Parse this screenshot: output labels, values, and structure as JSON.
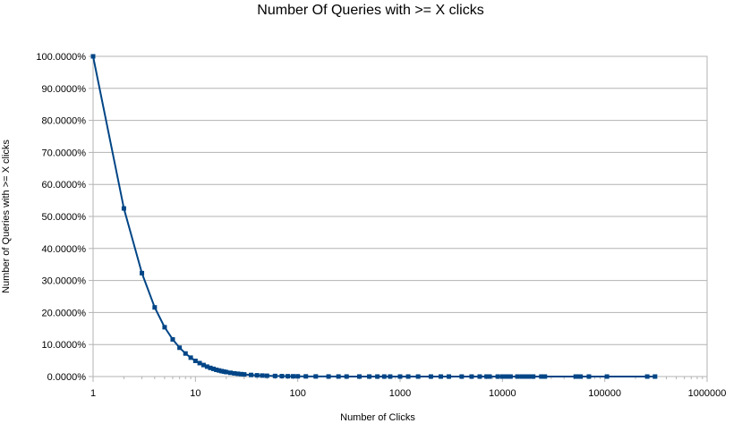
{
  "chart_data": {
    "type": "line",
    "title": "Number Of Queries with >= X clicks",
    "xlabel": "Number of Clicks",
    "ylabel": "Number of Queries with >= X clicks",
    "x_scale": "log",
    "xlim": [
      1,
      1000000
    ],
    "ylim": [
      0,
      100
    ],
    "grid": true,
    "legend": "none",
    "x_ticks": [
      "1",
      "10",
      "100",
      "1000",
      "10000",
      "100000",
      "1000000"
    ],
    "x_tick_values": [
      1,
      10,
      100,
      1000,
      10000,
      100000,
      1000000
    ],
    "y_ticks": [
      "0.0000%",
      "10.0000%",
      "20.0000%",
      "30.0000%",
      "40.0000%",
      "50.0000%",
      "60.0000%",
      "70.0000%",
      "80.0000%",
      "90.0000%",
      "100.0000%"
    ],
    "y_tick_values": [
      0,
      10,
      20,
      30,
      40,
      50,
      60,
      70,
      80,
      90,
      100
    ],
    "series": [
      {
        "x": [
          1,
          2,
          3,
          4,
          5,
          6,
          7,
          8,
          9,
          10,
          11,
          12,
          13,
          14,
          15,
          16,
          17,
          18,
          19,
          20,
          22,
          24,
          26,
          28,
          30,
          35,
          40,
          45,
          50,
          60,
          70,
          80,
          90,
          100,
          120,
          150,
          200,
          250,
          300,
          400,
          500,
          600,
          700,
          800,
          1000,
          1200,
          1500,
          2000,
          2500,
          3000,
          4000,
          5000,
          6000,
          7000,
          7500,
          9000,
          10000,
          11000,
          12000,
          14000,
          15500,
          17000,
          18500,
          20000,
          24000,
          26000,
          52000,
          55000,
          58000,
          70000,
          105000,
          260000,
          310000
        ],
        "y": [
          100,
          52.5,
          32.3,
          21.6,
          15.4,
          11.6,
          9.0,
          7.2,
          5.9,
          4.9,
          4.2,
          3.6,
          3.1,
          2.7,
          2.4,
          2.1,
          1.9,
          1.7,
          1.55,
          1.4,
          1.18,
          1.0,
          0.87,
          0.76,
          0.67,
          0.5,
          0.39,
          0.31,
          0.25,
          0.18,
          0.13,
          0.1,
          0.08,
          0.07,
          0.05,
          0.035,
          0.02,
          0.015,
          0.011,
          0.007,
          0.005,
          0.004,
          0.003,
          0.0025,
          0.002,
          0.0015,
          0.001,
          0.0008,
          0.0006,
          0.0005,
          0.0003,
          0.0002,
          0.00018,
          0.00015,
          0.00014,
          0.00012,
          0.0001,
          9e-05,
          8e-05,
          7e-05,
          6e-05,
          5e-05,
          4e-05,
          3e-05,
          2e-05,
          2e-05,
          1e-05,
          1e-05,
          1e-05,
          1e-05,
          1e-05,
          5e-06,
          5e-06
        ]
      }
    ],
    "colors": {
      "line": "#004586",
      "grid": "#b3b3b3",
      "frame": "#b3b3b3"
    }
  }
}
